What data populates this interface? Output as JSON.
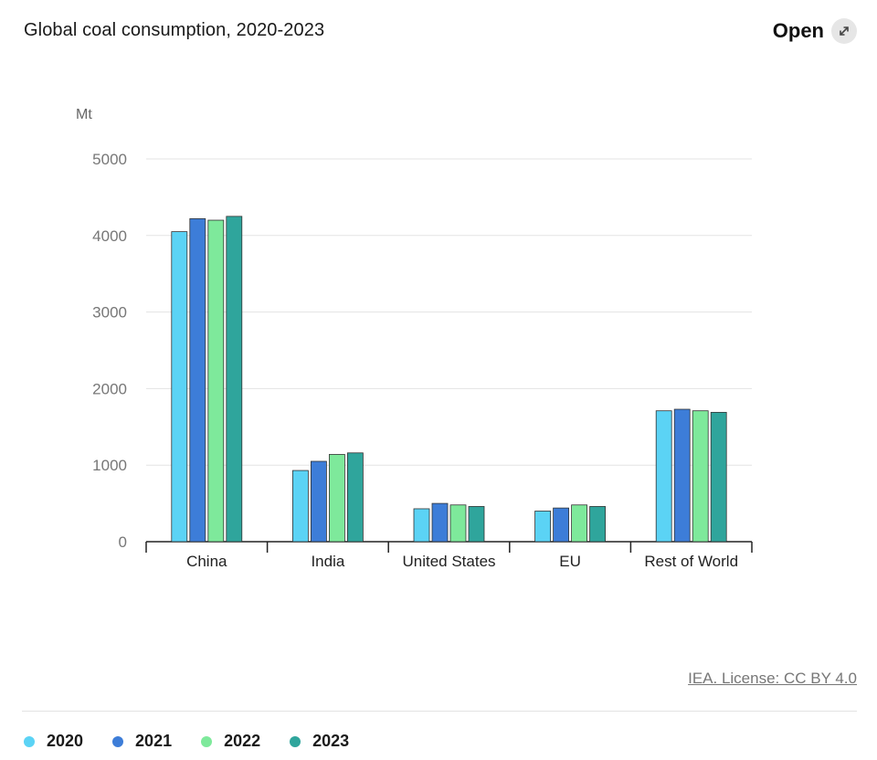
{
  "header": {
    "title": "Global coal consumption, 2020-2023",
    "open_label": "Open",
    "open_icon": "expand-arrow-icon"
  },
  "footer": {
    "license": "IEA. License: CC BY 4.0"
  },
  "colors": {
    "2020": "#5bd3f5",
    "2021": "#3d7dd8",
    "2022": "#7ee99b",
    "2023": "#2fa59c"
  },
  "chart_data": {
    "type": "bar",
    "title": "Global coal consumption, 2020-2023",
    "ylabel": "Mt",
    "xlabel": "",
    "ylim": [
      0,
      5000
    ],
    "yticks": [
      "0",
      "1000",
      "2000",
      "3000",
      "4000",
      "5000"
    ],
    "grid": true,
    "legend_position": "bottom-left",
    "categories": [
      "China",
      "India",
      "United States",
      "EU",
      "Rest of World"
    ],
    "series": [
      {
        "name": "2020",
        "values": [
          4050,
          930,
          430,
          400,
          1710
        ]
      },
      {
        "name": "2021",
        "values": [
          4220,
          1050,
          500,
          440,
          1730
        ]
      },
      {
        "name": "2022",
        "values": [
          4200,
          1140,
          480,
          480,
          1710
        ]
      },
      {
        "name": "2023",
        "values": [
          4250,
          1160,
          460,
          460,
          1690
        ]
      }
    ]
  }
}
